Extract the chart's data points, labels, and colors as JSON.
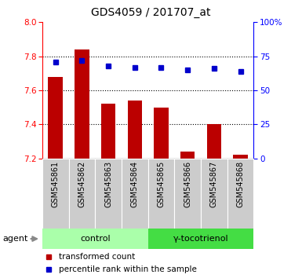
{
  "title": "GDS4059 / 201707_at",
  "samples": [
    "GSM545861",
    "GSM545862",
    "GSM545863",
    "GSM545864",
    "GSM545865",
    "GSM545866",
    "GSM545867",
    "GSM545868"
  ],
  "transformed_counts": [
    7.68,
    7.84,
    7.52,
    7.54,
    7.5,
    7.24,
    7.4,
    7.22
  ],
  "percentile_ranks": [
    71,
    72,
    68,
    67,
    67,
    65,
    66,
    64
  ],
  "bar_bottom": 7.2,
  "ylim_left": [
    7.2,
    8.0
  ],
  "ylim_right": [
    0,
    100
  ],
  "yticks_left": [
    7.2,
    7.4,
    7.6,
    7.8,
    8.0
  ],
  "yticks_right": [
    0,
    25,
    50,
    75,
    100
  ],
  "ytick_labels_right": [
    "0",
    "25",
    "50",
    "75",
    "100%"
  ],
  "bar_color": "#bb0000",
  "dot_color": "#0000cc",
  "control_label": "control",
  "treatment_label": "γ-tocotrienol",
  "agent_label": "agent",
  "legend_bar_label": "transformed count",
  "legend_dot_label": "percentile rank within the sample",
  "control_bg": "#aaffaa",
  "treatment_bg": "#44dd44",
  "sample_bg": "#cccccc",
  "axis_bg": "#ffffff",
  "bar_width": 0.55
}
